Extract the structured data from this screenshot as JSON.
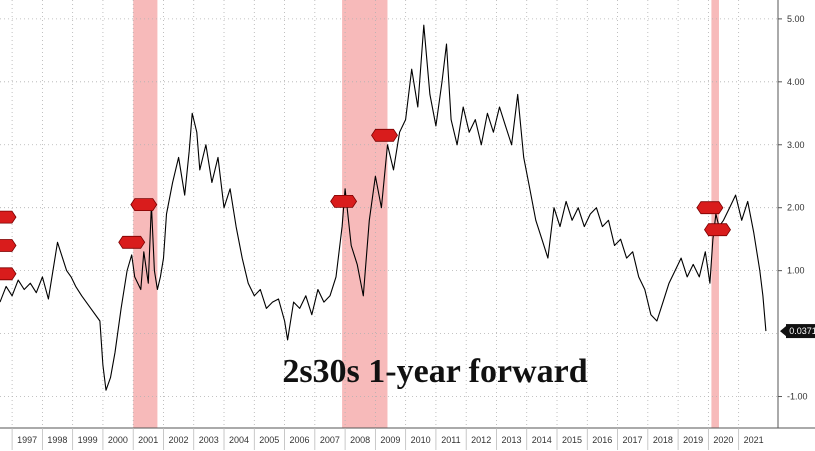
{
  "chart_data": {
    "type": "line",
    "title": "2s30s 1-year forward",
    "xlabel": "",
    "ylabel": "",
    "xlim": [
      1996.6,
      2022.3
    ],
    "ylim": [
      -1.5,
      5.3
    ],
    "x_ticks": [
      "1997",
      "1998",
      "1999",
      "2000",
      "2001",
      "2002",
      "2003",
      "2004",
      "2005",
      "2006",
      "2007",
      "2008",
      "2009",
      "2010",
      "2011",
      "2012",
      "2013",
      "2014",
      "2015",
      "2016",
      "2017",
      "2018",
      "2019",
      "2020",
      "2021"
    ],
    "y_ticks": [
      {
        "value": 5,
        "label": "5.00"
      },
      {
        "value": 4,
        "label": "4.00"
      },
      {
        "value": 3,
        "label": "3.00"
      },
      {
        "value": 2,
        "label": "2.00"
      },
      {
        "value": 1,
        "label": "1.00"
      },
      {
        "value": -1,
        "label": "-1.00"
      }
    ],
    "grid": true,
    "shaded_periods": [
      {
        "start": 2001.0,
        "end": 2001.8
      },
      {
        "start": 2007.9,
        "end": 2009.4
      },
      {
        "start": 2020.1,
        "end": 2020.35
      }
    ],
    "last_value": {
      "x": 2021.9,
      "y": 0.04,
      "label": "0.0371"
    },
    "series": [
      {
        "color": "#000000",
        "x": [
          1996.6,
          1996.8,
          1997.0,
          1997.2,
          1997.4,
          1997.6,
          1997.8,
          1998.0,
          1998.2,
          1998.5,
          1998.8,
          1998.95,
          1999.1,
          1999.3,
          1999.6,
          1999.9,
          2000.0,
          2000.1,
          2000.25,
          2000.4,
          2000.6,
          2000.8,
          2000.95,
          2001.05,
          2001.25,
          2001.35,
          2001.5,
          2001.6,
          2001.7,
          2001.8,
          2001.9,
          2002.0,
          2002.1,
          2002.3,
          2002.5,
          2002.7,
          2002.85,
          2002.95,
          2003.1,
          2003.2,
          2003.4,
          2003.6,
          2003.8,
          2004.0,
          2004.2,
          2004.4,
          2004.6,
          2004.8,
          2005.0,
          2005.2,
          2005.4,
          2005.6,
          2005.8,
          2006.0,
          2006.1,
          2006.3,
          2006.5,
          2006.7,
          2006.9,
          2007.1,
          2007.3,
          2007.5,
          2007.7,
          2007.9,
          2008.0,
          2008.2,
          2008.4,
          2008.6,
          2008.8,
          2009.0,
          2009.2,
          2009.4,
          2009.6,
          2009.8,
          2010.0,
          2010.2,
          2010.4,
          2010.6,
          2010.8,
          2011.0,
          2011.2,
          2011.35,
          2011.5,
          2011.7,
          2011.9,
          2012.1,
          2012.3,
          2012.5,
          2012.7,
          2012.9,
          2013.1,
          2013.3,
          2013.5,
          2013.7,
          2013.9,
          2014.1,
          2014.3,
          2014.5,
          2014.7,
          2014.9,
          2015.1,
          2015.3,
          2015.5,
          2015.7,
          2015.9,
          2016.1,
          2016.3,
          2016.5,
          2016.7,
          2016.9,
          2017.1,
          2017.3,
          2017.5,
          2017.7,
          2017.9,
          2018.1,
          2018.3,
          2018.5,
          2018.7,
          2018.9,
          2019.1,
          2019.3,
          2019.5,
          2019.7,
          2019.9,
          2020.05,
          2020.15,
          2020.25,
          2020.35,
          2020.5,
          2020.7,
          2020.9,
          2021.1,
          2021.3,
          2021.5,
          2021.6,
          2021.7,
          2021.8,
          2021.9
        ],
        "y": [
          0.5,
          0.75,
          0.6,
          0.85,
          0.7,
          0.8,
          0.65,
          0.9,
          0.55,
          1.45,
          1.0,
          0.9,
          0.75,
          0.6,
          0.4,
          0.2,
          -0.5,
          -0.9,
          -0.7,
          -0.3,
          0.4,
          1.0,
          1.25,
          0.9,
          0.7,
          1.3,
          0.8,
          2.05,
          1.0,
          0.7,
          0.9,
          1.2,
          1.9,
          2.4,
          2.8,
          2.2,
          2.9,
          3.5,
          3.2,
          2.6,
          3.0,
          2.4,
          2.8,
          2.0,
          2.3,
          1.7,
          1.2,
          0.8,
          0.6,
          0.7,
          0.4,
          0.5,
          0.55,
          0.2,
          -0.1,
          0.5,
          0.4,
          0.6,
          0.3,
          0.7,
          0.5,
          0.6,
          0.9,
          1.7,
          2.3,
          1.4,
          1.1,
          0.6,
          1.8,
          2.5,
          2.0,
          3.0,
          2.6,
          3.2,
          3.4,
          4.2,
          3.6,
          4.9,
          3.8,
          3.3,
          4.0,
          4.6,
          3.4,
          3.0,
          3.6,
          3.2,
          3.4,
          3.0,
          3.5,
          3.2,
          3.6,
          3.3,
          3.0,
          3.8,
          2.8,
          2.3,
          1.8,
          1.5,
          1.2,
          2.0,
          1.7,
          2.1,
          1.8,
          2.0,
          1.7,
          1.9,
          2.0,
          1.7,
          1.8,
          1.4,
          1.5,
          1.2,
          1.3,
          0.9,
          0.7,
          0.3,
          0.2,
          0.5,
          0.8,
          1.0,
          1.2,
          0.9,
          1.1,
          0.9,
          1.3,
          0.8,
          1.5,
          1.9,
          1.7,
          1.8,
          2.0,
          2.2,
          1.8,
          2.1,
          1.6,
          1.3,
          1.0,
          0.6,
          0.04
        ]
      }
    ],
    "markers": [
      {
        "x": 1996.7,
        "y": 1.85
      },
      {
        "x": 1996.7,
        "y": 1.4
      },
      {
        "x": 1996.7,
        "y": 0.95
      },
      {
        "x": 2000.95,
        "y": 1.45
      },
      {
        "x": 2001.35,
        "y": 2.05
      },
      {
        "x": 2007.95,
        "y": 2.1
      },
      {
        "x": 2009.3,
        "y": 3.15
      },
      {
        "x": 2020.05,
        "y": 2.0
      },
      {
        "x": 2020.3,
        "y": 1.65
      }
    ]
  }
}
